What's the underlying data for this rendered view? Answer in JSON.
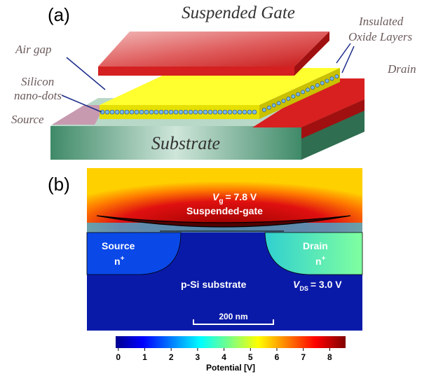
{
  "panel_a": {
    "label": "(a)",
    "title": "Suspended Gate",
    "air_gap": "Air gap",
    "nano_dots": [
      "Silicon",
      "nano-dots"
    ],
    "source": "Source",
    "oxide": [
      "Insulated",
      "Oxide Layers"
    ],
    "drain": "Drain",
    "substrate": "Substrate"
  },
  "panel_b": {
    "label": "(b)",
    "gate_voltage": {
      "symbol": "V",
      "subscript": "g",
      "text": "= 7.8 V"
    },
    "gate": "Suspended-gate",
    "source": {
      "name": "Source",
      "doping": "n",
      "sup": "+"
    },
    "drain": {
      "name": "Drain",
      "doping": "n",
      "sup": "+"
    },
    "substrate": "p-Si substrate",
    "drain_voltage": {
      "symbol": "V",
      "subscript": "DS",
      "text": "= 3.0 V"
    },
    "scale_bar": "200 nm",
    "colorbar": {
      "range": [
        -0.1,
        8.6
      ],
      "ticks": [
        0,
        1,
        2,
        3,
        4,
        5,
        6,
        7,
        8
      ],
      "label": "Potential [V]"
    }
  }
}
